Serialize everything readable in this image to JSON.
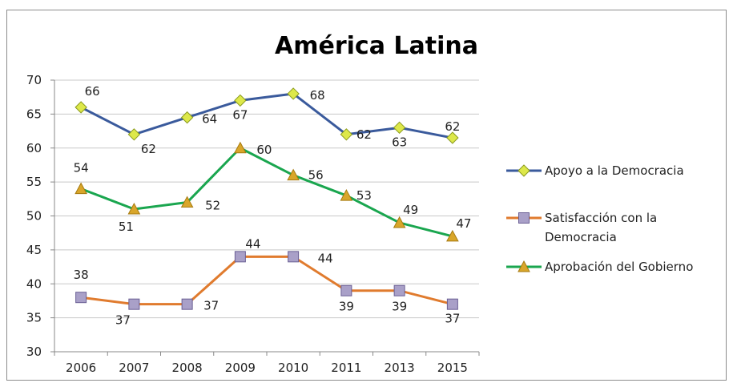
{
  "chart_data": {
    "type": "line",
    "title": "América Latina",
    "categories": [
      "2006",
      "2007",
      "2008",
      "2009",
      "2010",
      "2011",
      "2013",
      "2015"
    ],
    "ylim": [
      30,
      70
    ],
    "yticks": [
      30,
      35,
      40,
      45,
      50,
      55,
      60,
      65,
      70
    ],
    "grid": true,
    "legend_position": "right",
    "series": [
      {
        "name": "Apoyo a la Democracia",
        "values": [
          66,
          62,
          64.5,
          67,
          68,
          62,
          63,
          61.5
        ],
        "labels": [
          "66",
          "62",
          "64",
          "67",
          "68",
          "62",
          "63",
          "62"
        ],
        "color": "#3a5a9c",
        "marker": "diamond",
        "marker_color": "#dde84a"
      },
      {
        "name": "Satisfacción con la Democracia",
        "values": [
          38,
          37,
          37,
          44,
          44,
          39,
          39,
          37
        ],
        "labels": [
          "38",
          "37",
          "37",
          "44",
          "44",
          "39",
          "39",
          "37"
        ],
        "color": "#e07b2e",
        "marker": "square",
        "marker_color": "#a9a0c8"
      },
      {
        "name": "Aprobación del Gobierno",
        "values": [
          54,
          51,
          52,
          60,
          56,
          53,
          49,
          47
        ],
        "labels": [
          "54",
          "51",
          "52",
          "60",
          "56",
          "53",
          "49",
          "47"
        ],
        "color": "#1aa64f",
        "marker": "triangle",
        "marker_color": "#d9a62a"
      }
    ]
  }
}
